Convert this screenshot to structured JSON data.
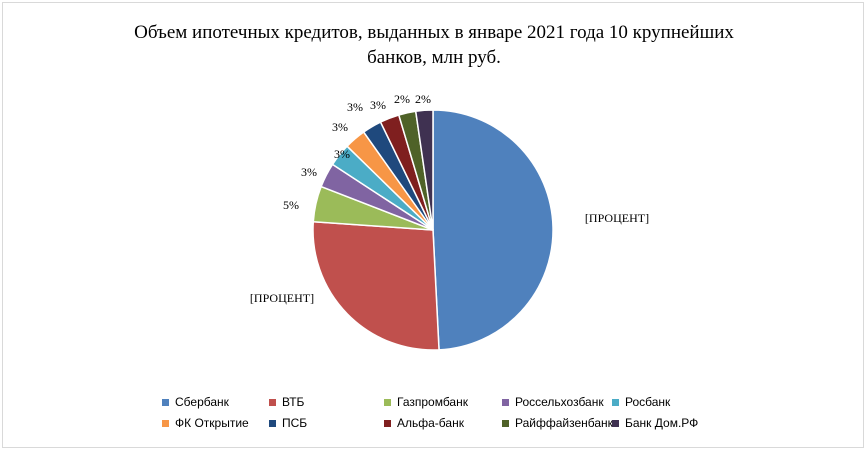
{
  "chart_data": {
    "type": "pie",
    "title": "Объем ипотечных кредитов, выданных в январе 2021 года 10 крупнейших\nбанков, млн руб.",
    "categories": [
      "Сбербанк",
      "ВТБ",
      "Газпромбанк",
      "Россельхозбанк",
      "Росбанк",
      "ФК Открытие",
      "ПСБ",
      "Альфа-банк",
      "Райффайзенбанк",
      "Банк Дом.РФ"
    ],
    "values": [
      49.2,
      26.9,
      4.8,
      3.3,
      3.1,
      2.9,
      2.6,
      2.6,
      2.3,
      2.3
    ],
    "data_labels": [
      "[ПРОЦЕНТ]",
      "[ПРОЦЕНТ]",
      "5%",
      "3%",
      "3%",
      "3%",
      "3%",
      "3%",
      "2%",
      "2%"
    ],
    "colors": [
      "#4f81bd",
      "#c0504d",
      "#9bbb59",
      "#8064a2",
      "#4bacc6",
      "#f79646",
      "#1f497d",
      "#7f1f1f",
      "#4f6228",
      "#3f3151"
    ],
    "legend_position": "bottom"
  }
}
